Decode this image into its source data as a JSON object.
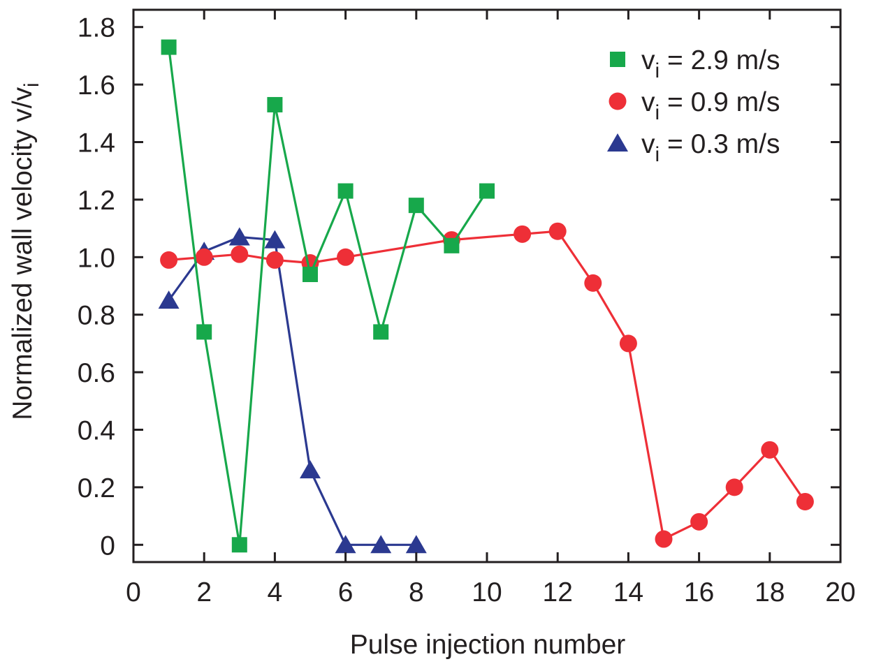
{
  "chart_data": {
    "type": "line",
    "xlabel": "Pulse injection number",
    "ylabel": "Normalized wall velocity v/v",
    "ylabel_sub": "i",
    "xlim": [
      0,
      20
    ],
    "ylim": [
      -0.06,
      1.86
    ],
    "x_ticks": [
      0,
      2,
      4,
      6,
      8,
      10,
      12,
      14,
      16,
      18,
      20
    ],
    "x_tick_labels": [
      "0",
      "2",
      "4",
      "6",
      "8",
      "10",
      "12",
      "14",
      "16",
      "18",
      "20"
    ],
    "y_ticks": [
      0,
      0.2,
      0.4,
      0.6,
      0.8,
      1.0,
      1.2,
      1.4,
      1.6,
      1.8
    ],
    "y_tick_labels": [
      "0",
      "0.2",
      "0.4",
      "0.6",
      "0.8",
      "1.0",
      "1.2",
      "1.4",
      "1.6",
      "1.8"
    ],
    "grid": false,
    "legend_position": "top-right",
    "series": [
      {
        "name": "v",
        "name_sub": "i",
        "name_rest": " = 2.9 m/s",
        "marker": "square",
        "color": "#17a84b",
        "x": [
          1,
          2,
          3,
          4,
          5,
          6,
          7,
          8,
          9,
          10
        ],
        "y": [
          1.73,
          0.74,
          0.0,
          1.53,
          0.94,
          1.23,
          0.74,
          1.18,
          1.04,
          1.23
        ]
      },
      {
        "name": "v",
        "name_sub": "i",
        "name_rest": " = 0.9 m/s",
        "marker": "circle",
        "color": "#ee2f37",
        "x": [
          1,
          2,
          3,
          4,
          5,
          6,
          9,
          11,
          12,
          13,
          14,
          15,
          16,
          17,
          18,
          19
        ],
        "y": [
          0.99,
          1.0,
          1.01,
          0.99,
          0.98,
          1.0,
          1.06,
          1.08,
          1.09,
          0.91,
          0.7,
          0.02,
          0.08,
          0.2,
          0.33,
          0.15
        ]
      },
      {
        "name": "v",
        "name_sub": "i",
        "name_rest": " = 0.3 m/s",
        "marker": "triangle",
        "color": "#2b3990",
        "x": [
          1,
          2,
          3,
          4,
          5,
          6,
          7,
          8
        ],
        "y": [
          0.85,
          1.02,
          1.07,
          1.06,
          0.26,
          0.0,
          0.0,
          0.0
        ]
      }
    ]
  }
}
